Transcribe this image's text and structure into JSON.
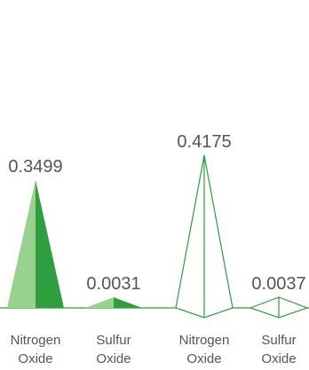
{
  "chart_data": {
    "type": "bar",
    "mark_style": "pyramid",
    "categories": [
      "Nitrogen Oxide",
      "Sulfur Oxide",
      "Nitrogen Oxide",
      "Sulfur Oxide"
    ],
    "category_lines": [
      [
        "Nitrogen",
        "Oxide"
      ],
      [
        "Sulfur",
        "Oxide"
      ],
      [
        "Nitrogen",
        "Oxide"
      ],
      [
        "Sulfur",
        "Oxide"
      ]
    ],
    "values": [
      0.3499,
      0.0031,
      0.4175,
      0.0037
    ],
    "value_labels": [
      "0.3499",
      "0.0031",
      "0.4175",
      "0.0037"
    ],
    "fill_styles": [
      "filled",
      "filled",
      "outline",
      "outline"
    ],
    "title": "",
    "xlabel": "",
    "ylabel": "",
    "ylim": [
      0,
      0.4175
    ],
    "grid": false,
    "legend": "none",
    "colors": {
      "light": "#99D18F",
      "dark": "#2E9E3E",
      "outline": "#2E9E3E",
      "text": "#555555"
    }
  }
}
